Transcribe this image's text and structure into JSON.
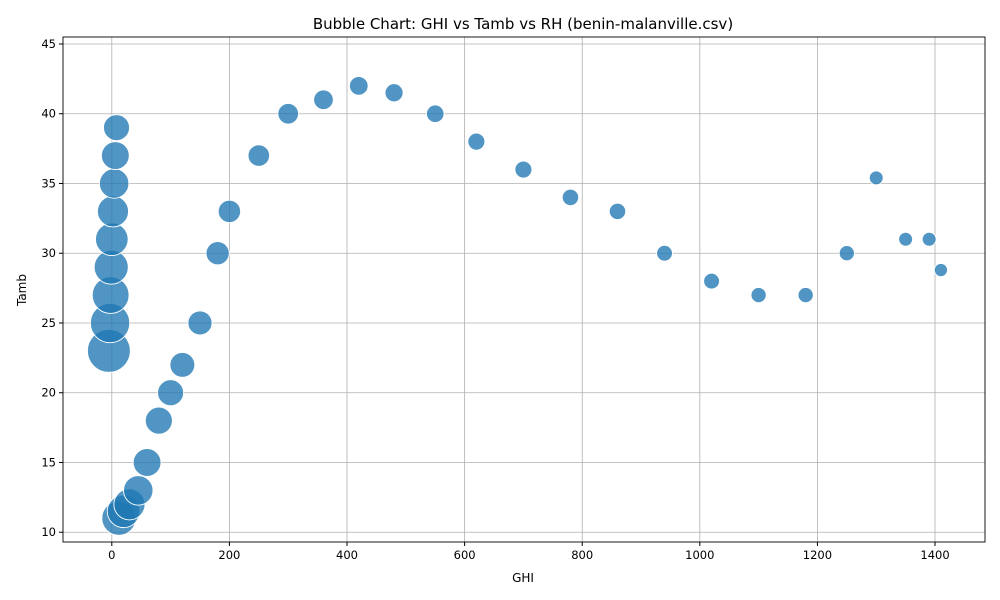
{
  "chart_data": {
    "type": "scatter",
    "variant": "bubble",
    "title": "Bubble Chart: GHI vs Tamb vs RH (benin-malanville.csv)",
    "xlabel": "GHI",
    "ylabel": "Tamb",
    "xlim": [
      -83,
      1485
    ],
    "ylim": [
      9.3,
      45.5
    ],
    "xticks": [
      0,
      200,
      400,
      600,
      800,
      1000,
      1200,
      1400
    ],
    "yticks": [
      10,
      15,
      20,
      25,
      30,
      35,
      40,
      45
    ],
    "grid": true,
    "legend": "none",
    "colors": {
      "bubble": "#1f77b4",
      "edge": "#ffffff"
    },
    "size_encoding": "RH",
    "series": [
      {
        "x": [
          -5,
          -3,
          -2,
          -1,
          0,
          2,
          4,
          6,
          8,
          12,
          20,
          30,
          45,
          60,
          80,
          100,
          120,
          150,
          180,
          200,
          250,
          300,
          360,
          420,
          480,
          550,
          620,
          700,
          780,
          860,
          940,
          1020,
          1100,
          1180,
          1250,
          1300,
          1350,
          1390,
          1410
        ],
        "y": [
          23.0,
          25.0,
          27.0,
          29.0,
          31.0,
          33.0,
          35.0,
          37.0,
          39.0,
          11.0,
          11.5,
          12.0,
          13.0,
          15.0,
          18.0,
          20.0,
          22.0,
          25.0,
          30.0,
          33.0,
          37.0,
          40.0,
          41.0,
          42.0,
          41.5,
          40.0,
          38.0,
          36.0,
          34.0,
          33.0,
          30.0,
          28.0,
          27.0,
          27.0,
          30.0,
          35.4,
          31.0,
          31.0,
          28.8
        ],
        "size": [
          95,
          80,
          70,
          60,
          55,
          50,
          45,
          40,
          35,
          60,
          55,
          50,
          45,
          40,
          38,
          35,
          32,
          30,
          28,
          26,
          24,
          22,
          20,
          18,
          17,
          16,
          15,
          15,
          14,
          14,
          13,
          13,
          12,
          12,
          12,
          10,
          10,
          10,
          9
        ]
      }
    ]
  }
}
